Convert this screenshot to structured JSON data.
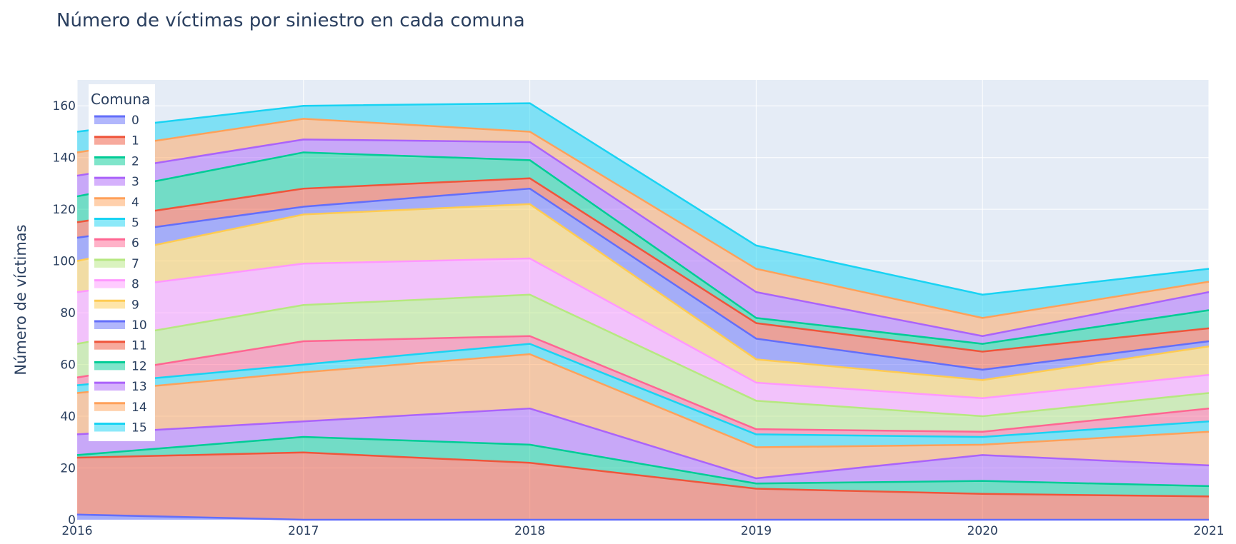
{
  "chart_data": {
    "type": "area",
    "title": "Número de víctimas por siniestro en cada comuna",
    "xlabel": "",
    "ylabel": "Número de víctimas",
    "x": [
      2016,
      2017,
      2018,
      2019,
      2020,
      2021
    ],
    "x_tick_labels": [
      "2016",
      "2017",
      "2018",
      "2019",
      "2020",
      "2021"
    ],
    "y_ticks": [
      0,
      20,
      40,
      60,
      80,
      100,
      120,
      140,
      160
    ],
    "y_tick_labels": [
      "0",
      "20",
      "40",
      "60",
      "80",
      "100",
      "120",
      "140",
      "160"
    ],
    "xlim": [
      2016,
      2021
    ],
    "ylim": [
      0,
      170
    ],
    "stacked": true,
    "grid": true,
    "legend": {
      "title": "Comuna",
      "placement": "top-left inside"
    },
    "series": [
      {
        "name": "0",
        "color": "#636efa",
        "values": [
          2,
          0,
          0,
          0,
          0,
          0
        ]
      },
      {
        "name": "1",
        "color": "#EF553B",
        "values": [
          22,
          26,
          22,
          12,
          10,
          9
        ]
      },
      {
        "name": "2",
        "color": "#00cc96",
        "values": [
          1,
          6,
          7,
          2,
          5,
          4
        ]
      },
      {
        "name": "3",
        "color": "#ab63fa",
        "values": [
          8,
          6,
          14,
          2,
          10,
          8
        ]
      },
      {
        "name": "4",
        "color": "#FFA15A",
        "values": [
          16,
          19,
          21,
          12,
          4,
          13
        ]
      },
      {
        "name": "5",
        "color": "#19d3f3",
        "values": [
          3,
          3,
          4,
          5,
          3,
          4
        ]
      },
      {
        "name": "6",
        "color": "#FF6692",
        "values": [
          3,
          9,
          3,
          2,
          2,
          5
        ]
      },
      {
        "name": "7",
        "color": "#B6E880",
        "values": [
          13,
          14,
          16,
          11,
          6,
          6
        ]
      },
      {
        "name": "8",
        "color": "#FF97FF",
        "values": [
          20,
          16,
          14,
          7,
          7,
          7
        ]
      },
      {
        "name": "9",
        "color": "#FECB52",
        "values": [
          12,
          19,
          21,
          9,
          7,
          11
        ]
      },
      {
        "name": "10",
        "color": "#636efa",
        "values": [
          9,
          3,
          6,
          8,
          4,
          2
        ]
      },
      {
        "name": "11",
        "color": "#EF553B",
        "values": [
          6,
          7,
          4,
          6,
          7,
          5
        ]
      },
      {
        "name": "12",
        "color": "#00cc96",
        "values": [
          10,
          14,
          7,
          2,
          3,
          7
        ]
      },
      {
        "name": "13",
        "color": "#ab63fa",
        "values": [
          8,
          5,
          7,
          10,
          3,
          7
        ]
      },
      {
        "name": "14",
        "color": "#FFA15A",
        "values": [
          9,
          8,
          4,
          9,
          7,
          4
        ]
      },
      {
        "name": "15",
        "color": "#19d3f3",
        "values": [
          8,
          5,
          11,
          9,
          9,
          5
        ]
      }
    ]
  }
}
